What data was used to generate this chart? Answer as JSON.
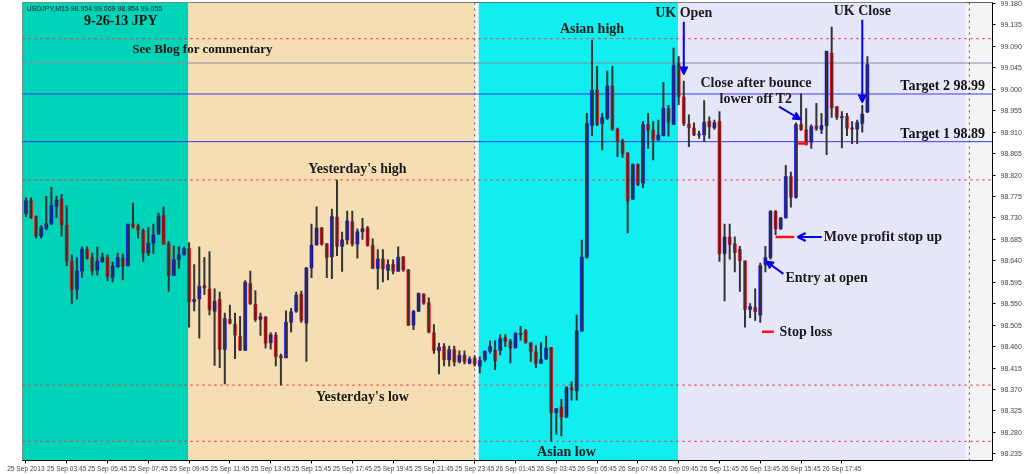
{
  "chart_data": {
    "type": "candlestick",
    "title": "9-26-13  JPY",
    "subtitle": "See Blog for commentary",
    "x": [
      "2013-09-25T01:45",
      "2013-09-25T02:00",
      "2013-09-25T02:15",
      "2013-09-25T02:30",
      "2013-09-25T02:45",
      "2013-09-25T03:00",
      "2013-09-25T03:15",
      "2013-09-25T03:30",
      "2013-09-25T03:45",
      "2013-09-25T04:00",
      "2013-09-25T04:15",
      "2013-09-25T04:30",
      "2013-09-25T04:45",
      "2013-09-25T05:00",
      "2013-09-25T05:15",
      "2013-09-25T05:30",
      "2013-09-25T05:45",
      "2013-09-25T06:00",
      "2013-09-25T06:15",
      "2013-09-25T06:30",
      "2013-09-25T06:45",
      "2013-09-25T07:00",
      "2013-09-25T07:15",
      "2013-09-25T07:30",
      "2013-09-25T07:45",
      "2013-09-25T08:00",
      "2013-09-25T08:15",
      "2013-09-25T08:30",
      "2013-09-25T08:45",
      "2013-09-25T09:00",
      "2013-09-25T09:15",
      "2013-09-25T09:30",
      "2013-09-25T09:45",
      "2013-09-25T10:00",
      "2013-09-25T10:15",
      "2013-09-25T10:30",
      "2013-09-25T10:45",
      "2013-09-25T11:00",
      "2013-09-25T11:15",
      "2013-09-25T11:30",
      "2013-09-25T11:45",
      "2013-09-25T12:00",
      "2013-09-25T12:15",
      "2013-09-25T12:30",
      "2013-09-25T12:45",
      "2013-09-25T13:00",
      "2013-09-25T13:15",
      "2013-09-25T13:30",
      "2013-09-25T13:45",
      "2013-09-25T14:00",
      "2013-09-25T14:15",
      "2013-09-25T14:30",
      "2013-09-25T14:45",
      "2013-09-25T15:00",
      "2013-09-25T15:15",
      "2013-09-25T15:30",
      "2013-09-25T15:45",
      "2013-09-25T16:00",
      "2013-09-25T16:15",
      "2013-09-25T16:30",
      "2013-09-25T16:45",
      "2013-09-25T17:00",
      "2013-09-25T17:15",
      "2013-09-25T17:30",
      "2013-09-25T17:45",
      "2013-09-25T18:00",
      "2013-09-25T18:15",
      "2013-09-25T18:30",
      "2013-09-25T18:45",
      "2013-09-25T19:00",
      "2013-09-25T19:15",
      "2013-09-25T19:30",
      "2013-09-25T19:45",
      "2013-09-25T20:00",
      "2013-09-25T20:15",
      "2013-09-25T20:30",
      "2013-09-25T20:45",
      "2013-09-25T21:00",
      "2013-09-25T21:15",
      "2013-09-25T21:30",
      "2013-09-25T21:45",
      "2013-09-25T22:00",
      "2013-09-25T22:15",
      "2013-09-25T22:30",
      "2013-09-25T22:45",
      "2013-09-25T23:00",
      "2013-09-25T23:15",
      "2013-09-25T23:30",
      "2013-09-25T23:45",
      "2013-09-26T00:00",
      "2013-09-26T00:15",
      "2013-09-26T00:30",
      "2013-09-26T00:45",
      "2013-09-26T01:00",
      "2013-09-26T01:15",
      "2013-09-26T01:30",
      "2013-09-26T01:45",
      "2013-09-26T02:00",
      "2013-09-26T02:15",
      "2013-09-26T02:30",
      "2013-09-26T02:45",
      "2013-09-26T03:00",
      "2013-09-26T03:15",
      "2013-09-26T03:30",
      "2013-09-26T03:45",
      "2013-09-26T04:00",
      "2013-09-26T04:15",
      "2013-09-26T04:30",
      "2013-09-26T04:45",
      "2013-09-26T05:00",
      "2013-09-26T05:15",
      "2013-09-26T05:30",
      "2013-09-26T05:45",
      "2013-09-26T06:00",
      "2013-09-26T06:15",
      "2013-09-26T06:30",
      "2013-09-26T06:45",
      "2013-09-26T07:00",
      "2013-09-26T07:15",
      "2013-09-26T07:30",
      "2013-09-26T07:45",
      "2013-09-26T08:00",
      "2013-09-26T08:15",
      "2013-09-26T08:30",
      "2013-09-26T08:45",
      "2013-09-26T09:00",
      "2013-09-26T09:15",
      "2013-09-26T09:30",
      "2013-09-26T09:45",
      "2013-09-26T10:00",
      "2013-09-26T10:15",
      "2013-09-26T10:30",
      "2013-09-26T10:45",
      "2013-09-26T11:00",
      "2013-09-26T11:15",
      "2013-09-26T11:30",
      "2013-09-26T11:45",
      "2013-09-26T12:00",
      "2013-09-26T12:15",
      "2013-09-26T12:30",
      "2013-09-26T12:45",
      "2013-09-26T13:00",
      "2013-09-26T13:15",
      "2013-09-26T13:30",
      "2013-09-26T13:45",
      "2013-09-26T14:00",
      "2013-09-26T14:15",
      "2013-09-26T14:30",
      "2013-09-26T14:45",
      "2013-09-26T15:00",
      "2013-09-26T15:15",
      "2013-09-26T15:30",
      "2013-09-26T15:45",
      "2013-09-26T16:00",
      "2013-09-26T16:15",
      "2013-09-26T16:30",
      "2013-09-26T16:45",
      "2013-09-26T17:00",
      "2013-09-26T17:15",
      "2013-09-26T17:30",
      "2013-09-26T17:45",
      "2013-09-26T18:00",
      "2013-09-26T18:15",
      "2013-09-26T18:30",
      "2013-09-26T18:45",
      "2013-09-26T19:00"
    ],
    "ohlc": [
      [
        98.739,
        98.773,
        98.732,
        98.766
      ],
      [
        98.766,
        98.773,
        98.728,
        98.73
      ],
      [
        98.733,
        98.735,
        98.687,
        98.692
      ],
      [
        98.692,
        98.715,
        98.687,
        98.71
      ],
      [
        98.708,
        98.776,
        98.704,
        98.718
      ],
      [
        98.718,
        98.795,
        98.715,
        98.756
      ],
      [
        98.754,
        98.776,
        98.73,
        98.768
      ],
      [
        98.769,
        98.78,
        98.691,
        98.715
      ],
      [
        98.715,
        98.756,
        98.629,
        98.639
      ],
      [
        98.639,
        98.653,
        98.549,
        98.58
      ],
      [
        98.58,
        98.647,
        98.559,
        98.619
      ],
      [
        98.618,
        98.67,
        98.604,
        98.664
      ],
      [
        98.664,
        98.67,
        98.643,
        98.645
      ],
      [
        98.647,
        98.657,
        98.609,
        98.619
      ],
      [
        98.62,
        98.67,
        98.609,
        98.639
      ],
      [
        98.638,
        98.657,
        98.636,
        98.648
      ],
      [
        98.647,
        98.653,
        98.597,
        98.608
      ],
      [
        98.605,
        98.638,
        98.595,
        98.629
      ],
      [
        98.627,
        98.657,
        98.626,
        98.647
      ],
      [
        98.646,
        98.655,
        98.599,
        98.629
      ],
      [
        98.629,
        98.718,
        98.629,
        98.717
      ],
      [
        98.717,
        98.762,
        98.708,
        98.711
      ],
      [
        98.713,
        98.718,
        98.687,
        98.704
      ],
      [
        98.703,
        98.708,
        98.638,
        98.657
      ],
      [
        98.656,
        98.711,
        98.65,
        98.677
      ],
      [
        98.677,
        98.718,
        98.655,
        98.694
      ],
      [
        98.696,
        98.741,
        98.694,
        98.734
      ],
      [
        98.735,
        98.754,
        98.674,
        98.675
      ],
      [
        98.677,
        98.681,
        98.575,
        98.609
      ],
      [
        98.609,
        98.672,
        98.609,
        98.642
      ],
      [
        98.643,
        98.67,
        98.624,
        98.653
      ],
      [
        98.653,
        98.67,
        98.651,
        98.666
      ],
      [
        98.666,
        98.679,
        98.5,
        98.554
      ],
      [
        98.554,
        98.633,
        98.534,
        98.559
      ],
      [
        98.56,
        98.67,
        98.477,
        98.587
      ],
      [
        98.588,
        98.648,
        98.568,
        98.583
      ],
      [
        98.581,
        98.66,
        98.526,
        98.537
      ],
      [
        98.534,
        98.582,
        98.42,
        98.555
      ],
      [
        98.559,
        98.575,
        98.415,
        98.454
      ],
      [
        98.454,
        98.531,
        98.381,
        98.519
      ],
      [
        98.517,
        98.548,
        98.507,
        98.509
      ],
      [
        98.507,
        98.531,
        98.434,
        98.484
      ],
      [
        98.481,
        98.524,
        98.451,
        98.453
      ],
      [
        98.452,
        98.599,
        98.451,
        98.595
      ],
      [
        98.593,
        98.619,
        98.548,
        98.55
      ],
      [
        98.549,
        98.578,
        98.512,
        98.517
      ],
      [
        98.517,
        98.531,
        98.483,
        98.523
      ],
      [
        98.522,
        98.524,
        98.456,
        98.467
      ],
      [
        98.468,
        98.49,
        98.454,
        98.485
      ],
      [
        98.484,
        98.49,
        98.419,
        98.439
      ],
      [
        98.441,
        98.445,
        98.379,
        98.436
      ],
      [
        98.436,
        98.536,
        98.436,
        98.511
      ],
      [
        98.511,
        98.541,
        98.49,
        98.533
      ],
      [
        98.534,
        98.575,
        98.531,
        98.568
      ],
      [
        98.57,
        98.577,
        98.51,
        98.515
      ],
      [
        98.509,
        98.627,
        98.428,
        98.625
      ],
      [
        98.625,
        98.718,
        98.604,
        98.673
      ],
      [
        98.673,
        98.754,
        98.672,
        98.709
      ],
      [
        98.709,
        98.711,
        98.672,
        98.675
      ],
      [
        98.676,
        98.677,
        98.604,
        98.647
      ],
      [
        98.648,
        98.749,
        98.602,
        98.733
      ],
      [
        98.732,
        98.81,
        98.65,
        98.67
      ],
      [
        98.67,
        98.701,
        98.617,
        98.684
      ],
      [
        98.684,
        98.745,
        98.674,
        98.724
      ],
      [
        98.722,
        98.745,
        98.67,
        98.675
      ],
      [
        98.675,
        98.708,
        98.645,
        98.701
      ],
      [
        98.701,
        98.73,
        98.684,
        98.708
      ],
      [
        98.709,
        98.713,
        98.67,
        98.672
      ],
      [
        98.672,
        98.687,
        98.623,
        98.624
      ],
      [
        98.624,
        98.664,
        98.58,
        98.644
      ],
      [
        98.644,
        98.664,
        98.595,
        98.623
      ],
      [
        98.62,
        98.643,
        98.599,
        98.632
      ],
      [
        98.633,
        98.643,
        98.612,
        98.618
      ],
      [
        98.618,
        98.67,
        98.617,
        98.648
      ],
      [
        98.648,
        98.65,
        98.617,
        98.621
      ],
      [
        98.621,
        98.623,
        98.503,
        98.505
      ],
      [
        98.505,
        98.537,
        98.495,
        98.534
      ],
      [
        98.534,
        98.573,
        98.533,
        98.572
      ],
      [
        98.57,
        98.572,
        98.548,
        98.551
      ],
      [
        98.552,
        98.563,
        98.488,
        98.49
      ],
      [
        98.489,
        98.507,
        98.445,
        98.452
      ],
      [
        98.451,
        98.468,
        98.402,
        98.459
      ],
      [
        98.46,
        98.467,
        98.419,
        98.432
      ],
      [
        98.432,
        98.462,
        98.418,
        98.454
      ],
      [
        98.454,
        98.462,
        98.419,
        98.428
      ],
      [
        98.428,
        98.452,
        98.425,
        98.442
      ],
      [
        98.442,
        98.452,
        98.423,
        98.428
      ],
      [
        98.425,
        98.439,
        98.423,
        98.434
      ],
      [
        98.436,
        98.442,
        98.418,
        98.423
      ],
      [
        98.419,
        98.439,
        98.404,
        98.431
      ],
      [
        98.432,
        98.452,
        98.428,
        98.45
      ],
      [
        98.45,
        98.473,
        98.445,
        98.46
      ],
      [
        98.452,
        98.473,
        98.411,
        98.43
      ],
      [
        98.452,
        98.486,
        98.442,
        98.477
      ],
      [
        98.479,
        98.486,
        98.459,
        98.471
      ],
      [
        98.471,
        98.476,
        98.425,
        98.457
      ],
      [
        98.457,
        98.49,
        98.456,
        98.488
      ],
      [
        98.485,
        98.503,
        98.473,
        98.488
      ],
      [
        98.493,
        98.497,
        98.466,
        98.469
      ],
      [
        98.468,
        98.469,
        98.428,
        98.449
      ],
      [
        98.449,
        98.463,
        98.415,
        98.425
      ],
      [
        98.425,
        98.469,
        98.424,
        98.433
      ],
      [
        98.434,
        98.483,
        98.432,
        98.457
      ],
      [
        98.458,
        98.459,
        98.261,
        98.321
      ],
      [
        98.321,
        98.33,
        98.275,
        98.33
      ],
      [
        98.333,
        98.35,
        98.272,
        98.312
      ],
      [
        98.312,
        98.377,
        98.31,
        98.374
      ],
      [
        98.374,
        98.387,
        98.347,
        98.369
      ],
      [
        98.367,
        98.527,
        98.347,
        98.493
      ],
      [
        98.492,
        98.684,
        98.492,
        98.648
      ],
      [
        98.647,
        98.95,
        98.645,
        98.928
      ],
      [
        98.924,
        99.104,
        98.902,
        98.998
      ],
      [
        98.999,
        99.049,
        98.923,
        98.926
      ],
      [
        98.928,
        98.95,
        98.872,
        98.94
      ],
      [
        98.939,
        99.039,
        98.936,
        99.007
      ],
      [
        99.007,
        99.049,
        98.913,
        98.916
      ],
      [
        98.916,
        98.919,
        98.858,
        98.892
      ],
      [
        98.892,
        98.896,
        98.856,
        98.865
      ],
      [
        98.866,
        98.868,
        98.698,
        98.766
      ],
      [
        98.769,
        98.844,
        98.768,
        98.842
      ],
      [
        98.842,
        98.844,
        98.797,
        98.8
      ],
      [
        98.803,
        98.933,
        98.793,
        98.926
      ],
      [
        98.926,
        98.95,
        98.875,
        98.914
      ],
      [
        98.914,
        98.933,
        98.851,
        98.894
      ],
      [
        98.894,
        98.936,
        98.892,
        98.904
      ],
      [
        98.902,
        99.015,
        98.902,
        98.96
      ],
      [
        98.96,
        98.967,
        98.901,
        98.931
      ],
      [
        98.926,
        99.087,
        98.925,
        99.05
      ],
      [
        99.054,
        99.069,
        98.967,
        98.984
      ],
      [
        98.984,
        99.018,
        98.923,
        98.928
      ],
      [
        98.927,
        98.947,
        98.879,
        98.919
      ],
      [
        98.919,
        98.93,
        98.902,
        98.904
      ],
      [
        98.904,
        98.913,
        98.896,
        98.906
      ],
      [
        98.904,
        98.977,
        98.89,
        98.931
      ],
      [
        98.933,
        98.943,
        98.896,
        98.921
      ],
      [
        98.919,
        98.936,
        98.915,
        98.93
      ],
      [
        98.933,
        98.954,
        98.638,
        98.655
      ],
      [
        98.655,
        98.718,
        98.555,
        98.69
      ],
      [
        98.69,
        98.718,
        98.643,
        98.674
      ],
      [
        98.676,
        98.691,
        98.616,
        98.657
      ],
      [
        98.664,
        98.671,
        98.575,
        98.64
      ],
      [
        98.64,
        98.64,
        98.5,
        98.538
      ],
      [
        98.538,
        98.551,
        98.52,
        98.544
      ],
      [
        98.542,
        98.582,
        98.514,
        98.533
      ],
      [
        98.526,
        98.636,
        98.51,
        98.63
      ],
      [
        98.632,
        98.671,
        98.616,
        98.647
      ],
      [
        98.647,
        98.746,
        98.643,
        98.744
      ],
      [
        98.744,
        98.746,
        98.694,
        98.707
      ],
      [
        98.707,
        98.732,
        98.705,
        98.73
      ],
      [
        98.73,
        98.841,
        98.729,
        98.817
      ],
      [
        98.817,
        98.827,
        98.752,
        98.773
      ],
      [
        98.773,
        98.93,
        98.771,
        98.926
      ],
      [
        98.926,
        98.991,
        98.913,
        98.915
      ],
      [
        98.915,
        98.96,
        98.882,
        98.884
      ],
      [
        98.889,
        98.926,
        98.875,
        98.922
      ],
      [
        98.923,
        98.971,
        98.913,
        98.917
      ],
      [
        98.915,
        98.95,
        98.906,
        98.924
      ],
      [
        98.923,
        99.08,
        98.862,
        99.08
      ],
      [
        99.076,
        99.131,
        98.94,
        98.96
      ],
      [
        98.964,
        98.964,
        98.936,
        98.941
      ],
      [
        98.94,
        98.954,
        98.876,
        98.943
      ],
      [
        98.943,
        98.95,
        98.902,
        98.918
      ],
      [
        98.919,
        98.933,
        98.885,
        98.916
      ],
      [
        98.916,
        98.936,
        98.885,
        98.93
      ],
      [
        98.928,
        98.967,
        98.909,
        98.948
      ],
      [
        98.952,
        99.069,
        98.95,
        99.052
      ]
    ],
    "series": [
      {
        "type": "line",
        "color": "#ff1010",
        "x": [
          "2013-09-26T13:50",
          "2013-09-26T14:25",
          "2013-09-26T14:27",
          "2013-09-26T14:30",
          "2013-09-26T15:25",
          "2013-09-26T15:30",
          "2013-09-26T15:35",
          "2013-09-26T16:05"
        ],
        "values": [
          98.491,
          98.491,
          null,
          98.69,
          98.69,
          null,
          98.886,
          98.886
        ],
        "line_style": "solid"
      }
    ],
    "xlim": [
      "2013-09-25T01:35",
      "2013-09-27T01:08"
    ],
    "ylim": [
      98.221,
      99.182
    ],
    "xticks": [
      {
        "value": "2013-09-25T01:45",
        "label": "25 Sep 2013"
      },
      {
        "value": "2013-09-25T03:45",
        "label": "25 Sep 03:45"
      },
      {
        "value": "2013-09-25T05:45",
        "label": "25 Sep 05:45"
      },
      {
        "value": "2013-09-25T07:45",
        "label": "25 Sep 07:45"
      },
      {
        "value": "2013-09-25T09:45",
        "label": "25 Sep 09:45"
      },
      {
        "value": "2013-09-25T11:45",
        "label": "25 Sep 11:45"
      },
      {
        "value": "2013-09-25T13:45",
        "label": "25 Sep 13:45"
      },
      {
        "value": "2013-09-25T15:45",
        "label": "25 Sep 15:45"
      },
      {
        "value": "2013-09-25T17:45",
        "label": "25 Sep 17:45"
      },
      {
        "value": "2013-09-25T19:45",
        "label": "25 Sep 19:45"
      },
      {
        "value": "2013-09-25T21:45",
        "label": "25 Sep 21:45"
      },
      {
        "value": "2013-09-25T23:45",
        "label": "25 Sep 23:45"
      },
      {
        "value": "2013-09-26T01:45",
        "label": "26 Sep 01:45"
      },
      {
        "value": "2013-09-26T03:45",
        "label": "26 Sep 03:45"
      },
      {
        "value": "2013-09-26T05:45",
        "label": "26 Sep 05:45"
      },
      {
        "value": "2013-09-26T07:45",
        "label": "26 Sep 07:45"
      },
      {
        "value": "2013-09-26T09:45",
        "label": "26 Sep 09:45"
      },
      {
        "value": "2013-09-26T11:45",
        "label": "26 Sep 11:45"
      },
      {
        "value": "2013-09-26T13:45",
        "label": "26 Sep 13:45"
      },
      {
        "value": "2013-09-26T15:45",
        "label": "26 Sep 15:45"
      },
      {
        "value": "2013-09-26T17:45",
        "label": "26 Sep 17:45"
      }
    ],
    "yticks": [
      98.235,
      {
        "value": 98.28,
        "label": "98.280"
      },
      98.325,
      {
        "value": 98.37,
        "label": "98.370"
      },
      98.415,
      {
        "value": 98.46,
        "label": "98.460"
      },
      98.505,
      {
        "value": 98.55,
        "label": "98.550"
      },
      98.595,
      {
        "value": 98.64,
        "label": "98.640"
      },
      98.685,
      {
        "value": 98.73,
        "label": "98.730"
      },
      98.775,
      {
        "value": 98.82,
        "label": "98.820"
      },
      98.865,
      {
        "value": 98.91,
        "label": "98.910"
      },
      98.955,
      {
        "value": 99.0,
        "label": "99.000"
      },
      99.045,
      {
        "value": 99.09,
        "label": "99.090"
      },
      99.135,
      {
        "value": 99.18,
        "label": "99.180"
      }
    ],
    "bands": [
      {
        "axis": "x",
        "from": "2013-09-25T01:35",
        "to": "2013-09-25T23:45",
        "color": "#f5deb3"
      },
      {
        "axis": "x",
        "from": "2013-09-25T01:35",
        "to": "2013-09-25T09:42",
        "color": "#00d4b8"
      },
      {
        "axis": "x",
        "from": "2013-09-25T23:57",
        "to": "2013-09-26T09:43",
        "color": "#10eef0"
      },
      {
        "axis": "x",
        "from": "2013-09-26T09:43",
        "to": "2013-09-26T23:48",
        "color": "#e6e6fa"
      }
    ],
    "ref_lines": [
      {
        "axis": "y",
        "value": 99.106,
        "color": "#ff3030",
        "line_style": "dotted"
      },
      {
        "axis": "y",
        "value": 98.81,
        "color": "#ff3030",
        "line_style": "dotted"
      },
      {
        "axis": "y",
        "value": 98.379,
        "color": "#ff3030",
        "line_style": "dotted"
      },
      {
        "axis": "y",
        "value": 98.261,
        "color": "#ff3030",
        "line_style": "dotted"
      },
      {
        "axis": "y",
        "value": 99.055,
        "color": "#8890a0",
        "line_style": "solid"
      },
      {
        "axis": "y",
        "value": 98.99,
        "label": "Target 2  98.99",
        "color": "#3a3ae0",
        "line_style": "solid"
      },
      {
        "axis": "y",
        "value": 98.89,
        "label": "Target 1  98.89",
        "color": "#3a3ae0",
        "line_style": "solid"
      },
      {
        "axis": "x",
        "value": "2013-09-25T23:45",
        "color": "#505050",
        "line_style": "dotted"
      },
      {
        "axis": "x",
        "value": "2013-09-27T00:00",
        "color": "#505050",
        "line_style": "dotted"
      }
    ],
    "annotations": [
      "USDJPY,M15 98.954 99.069 98.954 99.055",
      {
        "text": "Yesterday's high",
        "x": "2013-09-25T18:00",
        "y": 98.81
      },
      {
        "text": "Yesterday's low",
        "x": "2013-09-25T18:15",
        "y": 98.379
      },
      {
        "text": "Asian high",
        "x": "2013-09-26T05:30",
        "y": 99.104
      },
      {
        "text": "Asian low",
        "x": "2013-09-26T04:15",
        "y": 98.261
      },
      {
        "text": "UK Open",
        "x": "2013-09-26T10:00",
        "y": 99.03
      },
      {
        "text": "UK Close",
        "x": "2013-09-26T18:45",
        "y": 98.971
      },
      {
        "text": "Close after bounce\nlower off T2",
        "x": "2013-09-26T15:45",
        "y": 98.936
      },
      {
        "text": "Move profit stop up",
        "x": "2013-09-26T15:35",
        "y": 98.69
      },
      {
        "text": "Entry at open",
        "x": "2013-09-26T14:00",
        "y": 98.64
      },
      {
        "text": "Stop loss",
        "x": "2013-09-26T14:30",
        "y": 98.491
      }
    ]
  }
}
